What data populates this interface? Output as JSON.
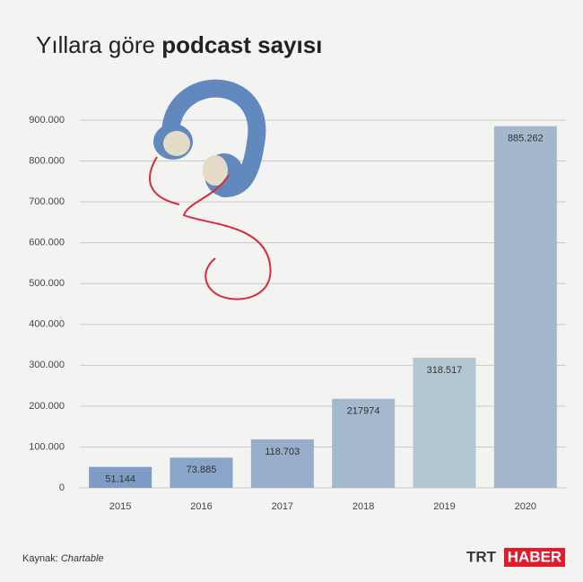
{
  "chart_data": {
    "type": "bar",
    "title": "Yıllara göre",
    "title_emphasis": "podcast sayısı",
    "categories": [
      "2015",
      "2016",
      "2017",
      "2018",
      "2019",
      "2020"
    ],
    "values": [
      51144,
      73885,
      118703,
      217974,
      318517,
      885262
    ],
    "value_labels": [
      "51.144",
      "73.885",
      "118.703",
      "217974",
      "318.517",
      "885.262"
    ],
    "colors": [
      "#7e9cc6",
      "#89a5c8",
      "#97aecb",
      "#a4b8ce",
      "#b3c7d2",
      "#a3b8cd"
    ],
    "ylim": [
      0,
      900000
    ],
    "yticks": [
      0,
      {
        "value": 100000,
        "label": "100.000"
      },
      {
        "value": 200000,
        "label": "200.000"
      },
      {
        "value": 300000,
        "label": "300.000"
      },
      {
        "value": 400000,
        "label": "400.000"
      },
      {
        "value": 500000,
        "label": "500.000"
      },
      {
        "value": 600000,
        "label": "600.000"
      },
      {
        "value": 700000,
        "label": "700.000"
      },
      {
        "value": 800000,
        "label": "800.000"
      },
      {
        "value": 900000,
        "label": "900.000"
      }
    ],
    "grid": true,
    "source_label": "Kaynak:",
    "source": "Chartable",
    "logo": {
      "left": "TRT",
      "right": "HABER"
    }
  }
}
